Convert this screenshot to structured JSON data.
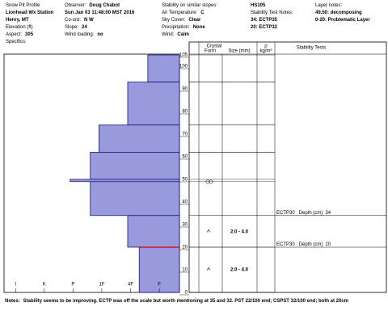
{
  "header": {
    "columns": [
      [
        {
          "label": "Snow Pit Profile"
        },
        {
          "value": "Lionhead Wx Station"
        },
        {
          "value": "Henry, MT"
        },
        {
          "label": "Elevation (ft)"
        },
        {
          "label": "Aspect:",
          "value": "305"
        },
        {
          "label": "Specifics:"
        }
      ],
      [
        {
          "label": "Observer:",
          "value": "Doug Chabot"
        },
        {
          "value": "Sun Jan 03 11:48:00 MST 2016"
        },
        {
          "label": "Co-ord:",
          "value": "N  W"
        },
        {
          "label": "Slope:",
          "value": "24"
        },
        {
          "label": "Wind loading:",
          "value": "no"
        }
      ],
      [
        {
          "label": "Stability on similar slopes:"
        },
        {
          "label": "Air Temperature:",
          "value": "C"
        },
        {
          "label": "Sky Cover:",
          "value": "Clear"
        },
        {
          "label": "Precipitation:",
          "value": "None"
        },
        {
          "label": "Wind:",
          "value": "Calm"
        }
      ],
      [
        {
          "value": "HS105"
        },
        {
          "label": "Stability Test Notes:"
        },
        {
          "value": "34: ECTP35"
        },
        {
          "value": "20: ECTP32"
        }
      ],
      [
        {
          "label": "Layer notes:"
        },
        {
          "value": "49.50: decomposing"
        },
        {
          "value": "0-20: Problematic Layer"
        }
      ]
    ]
  },
  "profile": {
    "height_lim": [
      0,
      105
    ],
    "height_ticks": [
      0,
      10,
      20,
      30,
      40,
      50,
      60,
      70,
      80,
      90,
      100,
      105
    ],
    "hardness_lim": [
      6.4,
      0.3
    ],
    "hardness_ticks": [
      {
        "value": 6,
        "label": "I"
      },
      {
        "value": 5,
        "label": "K"
      },
      {
        "value": 4,
        "label": "P"
      },
      {
        "value": 3,
        "label": "1F"
      },
      {
        "value": 2,
        "label": "4F"
      },
      {
        "value": 1,
        "label": "F"
      }
    ],
    "layers": [
      {
        "top": 105,
        "bottom": 93,
        "hardness": 1.4
      },
      {
        "top": 93,
        "bottom": 74,
        "hardness": 2.1
      },
      {
        "top": 74,
        "bottom": 62,
        "hardness": 3.1
      },
      {
        "top": 62,
        "bottom": 34,
        "hardness": 3.4
      },
      {
        "top": 34,
        "bottom": 20,
        "hardness": 2.1
      },
      {
        "top": 20,
        "bottom": 0,
        "hardness": 1.7
      },
      {
        "top": 50,
        "bottom": 49,
        "hardness": 4.1
      }
    ],
    "color": "#9999dd",
    "problem_color": "#dd0000"
  },
  "table": {
    "headers": {
      "crystal": "Crystal",
      "form": "Form",
      "size": "Size (mm)",
      "rho": "ρ",
      "density_unit": "kg/m³",
      "tests": "Stability Tests"
    },
    "crystals": [
      {
        "form": "^",
        "size": "2.0 - 4.0"
      },
      {
        "form": "^",
        "size": "2.0 - 4.0"
      }
    ],
    "tests": [
      {
        "name": "ECTP30",
        "depth_label": "Depth (cm)",
        "depth": 34
      },
      {
        "name": "ECTP30",
        "depth_label": "Depth (cm)",
        "depth": 20
      }
    ]
  },
  "notes": {
    "label": "Notes:",
    "text": "Stability seems to be improving. ECTP was off the scale but worth mentioning at 35 and 32. PST 22/100 end; CSPST 32/100 end; both at 20cm"
  }
}
